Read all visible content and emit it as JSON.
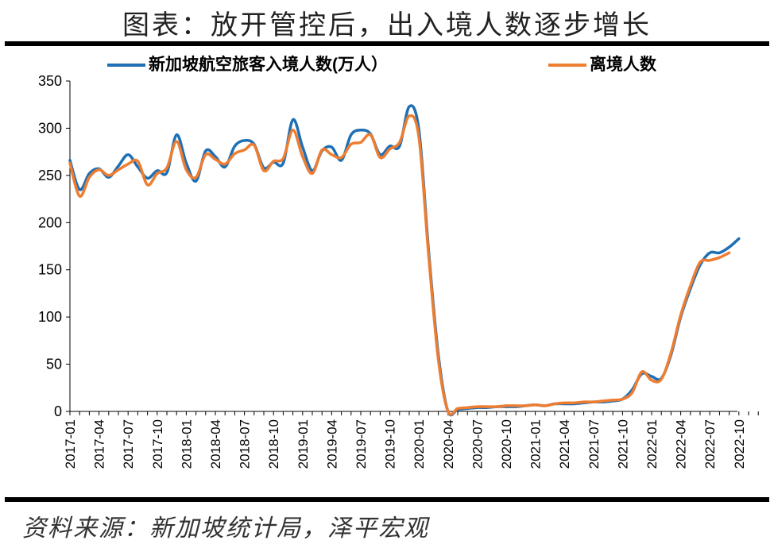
{
  "header": {
    "title": "图表：放开管控后，出入境人数逐步增长"
  },
  "footer": {
    "source": "资料来源：新加坡统计局，泽平宏观"
  },
  "chart_data": {
    "type": "line",
    "title": "",
    "xlabel": "",
    "ylabel": "",
    "ylim": [
      0,
      350
    ],
    "yticks": [
      0,
      50,
      100,
      150,
      200,
      250,
      300,
      350
    ],
    "x_tick_labels": [
      "2017-01",
      "2017-04",
      "2017-07",
      "2017-10",
      "2018-01",
      "2018-04",
      "2018-07",
      "2018-10",
      "2019-01",
      "2019-04",
      "2019-07",
      "2019-10",
      "2020-01",
      "2020-04",
      "2020-07",
      "2020-10",
      "2021-01",
      "2021-04",
      "2021-07",
      "2021-10",
      "2022-01",
      "2022-04",
      "2022-07",
      "2022-10"
    ],
    "legend": {
      "placement": "top"
    },
    "grid": false,
    "start_month": "2017-01",
    "series": [
      {
        "name": "新加坡航空旅客入境人数(万人）",
        "color": "#1f6fb5",
        "values": [
          266,
          235,
          252,
          257,
          248,
          260,
          272,
          259,
          247,
          255,
          253,
          293,
          263,
          244,
          276,
          270,
          259,
          281,
          287,
          283,
          258,
          264,
          263,
          309,
          280,
          255,
          276,
          280,
          266,
          293,
          298,
          294,
          272,
          281,
          281,
          323,
          298,
          170,
          60,
          0,
          2,
          3,
          4,
          4,
          5,
          5,
          5,
          6,
          7,
          6,
          8,
          8,
          8,
          9,
          10,
          10,
          11,
          13,
          23,
          40,
          37,
          35,
          60,
          100,
          130,
          155,
          168,
          168,
          174,
          183
        ]
      },
      {
        "name": "离境人数",
        "color": "#ed7d31",
        "values": [
          263,
          228,
          248,
          256,
          250,
          256,
          262,
          265,
          240,
          252,
          258,
          286,
          256,
          248,
          272,
          267,
          262,
          273,
          277,
          282,
          255,
          265,
          268,
          298,
          270,
          252,
          277,
          272,
          269,
          283,
          285,
          293,
          269,
          278,
          285,
          313,
          290,
          165,
          55,
          0,
          3,
          4,
          5,
          5,
          5,
          6,
          6,
          6,
          7,
          6,
          8,
          9,
          9,
          10,
          10,
          11,
          12,
          13,
          20,
          42,
          33,
          34,
          62,
          102,
          133,
          158,
          160,
          163,
          168
        ]
      }
    ]
  }
}
